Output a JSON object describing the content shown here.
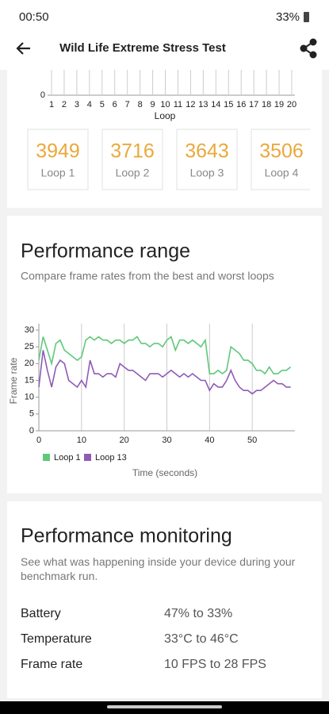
{
  "status_bar": {
    "time": "00:50",
    "battery": "33%"
  },
  "header": {
    "title": "Wild Life Extreme Stress Test"
  },
  "loop_chart": {
    "ytick": "0",
    "loops": [
      "1",
      "2",
      "3",
      "4",
      "5",
      "6",
      "7",
      "8",
      "9",
      "10",
      "11",
      "12",
      "13",
      "14",
      "15",
      "16",
      "17",
      "18",
      "19",
      "20"
    ],
    "xlabel": "Loop"
  },
  "loop_cards": [
    {
      "score": "3949",
      "label": "Loop 1"
    },
    {
      "score": "3716",
      "label": "Loop 2"
    },
    {
      "score": "3643",
      "label": "Loop 3"
    },
    {
      "score": "3506",
      "label": "Loop 4"
    }
  ],
  "performance_range": {
    "title": "Performance range",
    "subtitle": "Compare frame rates from the best and worst loops",
    "chart": {
      "type": "line",
      "ylabel": "Frame rate",
      "xlabel": "Time (seconds)",
      "x": [
        0,
        1,
        2,
        3,
        4,
        5,
        6,
        7,
        8,
        9,
        10,
        11,
        12,
        13,
        14,
        15,
        16,
        17,
        18,
        19,
        20,
        21,
        22,
        23,
        24,
        25,
        26,
        27,
        28,
        29,
        30,
        31,
        32,
        33,
        34,
        35,
        36,
        37,
        38,
        39,
        40,
        41,
        42,
        43,
        44,
        45,
        46,
        47,
        48,
        49,
        50,
        51,
        52,
        53,
        54,
        55,
        56,
        57,
        58,
        59
      ],
      "series": [
        {
          "name": "Loop 1",
          "color": "#5ec97a",
          "values": [
            21,
            28,
            24,
            20,
            26,
            27,
            24,
            23,
            22,
            21,
            22,
            27,
            28,
            27,
            28,
            27,
            27,
            26,
            27,
            27,
            26,
            27,
            27,
            28,
            26,
            26,
            25,
            26,
            26,
            25,
            27,
            28,
            24,
            27,
            27,
            26,
            27,
            26,
            25,
            27,
            17,
            17,
            18,
            17,
            18,
            25,
            24,
            23,
            21,
            21,
            20,
            18,
            18,
            17,
            19,
            17,
            17,
            18,
            18,
            19
          ]
        },
        {
          "name": "Loop 13",
          "color": "#8e5bb5",
          "values": [
            13,
            24,
            18,
            13,
            19,
            21,
            20,
            15,
            14,
            13,
            15,
            13,
            21,
            17,
            17,
            16,
            17,
            17,
            16,
            20,
            19,
            18,
            18,
            17,
            16,
            15,
            17,
            17,
            17,
            16,
            17,
            18,
            17,
            16,
            17,
            16,
            17,
            16,
            15,
            15,
            12,
            14,
            13,
            13,
            15,
            18,
            15,
            13,
            12,
            12,
            11,
            12,
            12,
            13,
            14,
            15,
            14,
            14,
            13,
            13
          ]
        }
      ],
      "xlim": [
        0,
        60
      ],
      "xticks": [
        0,
        10,
        20,
        30,
        40,
        50
      ],
      "ylim": [
        0,
        30
      ],
      "yticks": [
        0,
        5,
        10,
        15,
        20,
        25,
        30
      ],
      "grid": true,
      "legend": "bottom-left"
    }
  },
  "performance_monitoring": {
    "title": "Performance monitoring",
    "description": "See what was happening inside your device during your benchmark run.",
    "rows": [
      {
        "label": "Battery",
        "value": "47% to 33%"
      },
      {
        "label": "Temperature",
        "value": "33°C to 46°C"
      },
      {
        "label": "Frame rate",
        "value": "10 FPS to 28 FPS"
      }
    ]
  }
}
